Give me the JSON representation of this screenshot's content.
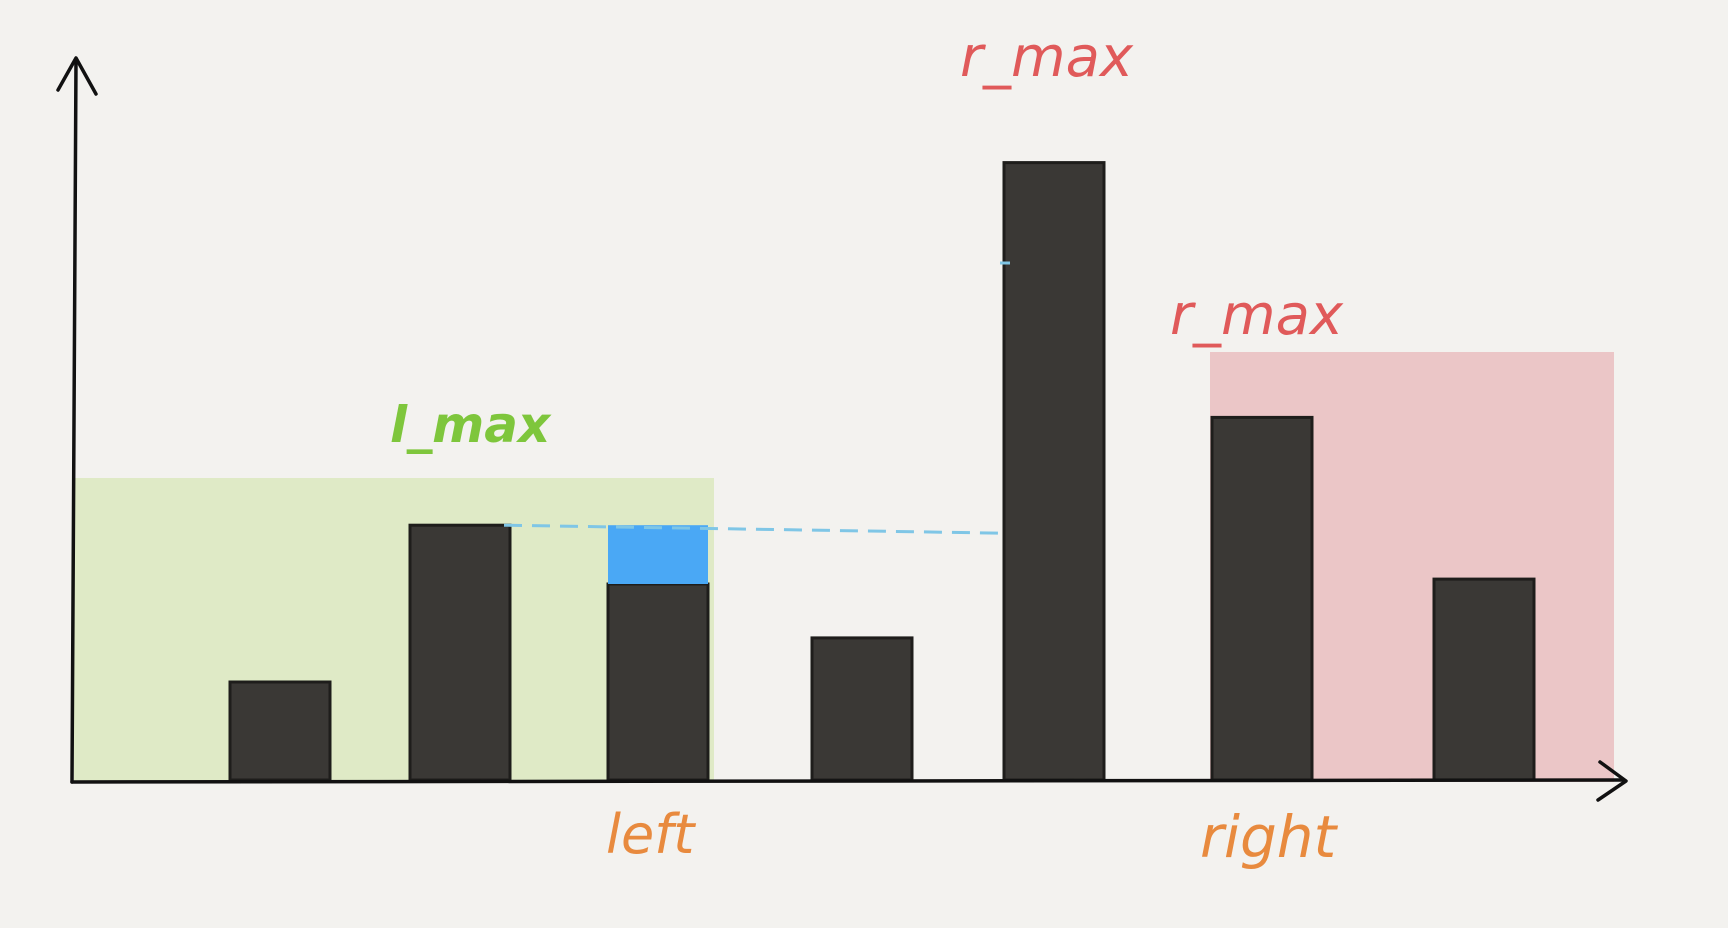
{
  "labels": {
    "l_max": "l_max",
    "r_max_top": "r_max",
    "r_max_right": "r_max",
    "left": "left",
    "right": "right"
  },
  "colors": {
    "background": "#f3f2ef",
    "bar": "#3a3835",
    "axis": "#111111",
    "l_max_region": "#dfeac6",
    "r_max_region": "#ebc6c7",
    "water": "#4aa8f5",
    "dashed_line": "#7fc6e6",
    "l_max_text": "#7ec63c",
    "r_max_text": "#e05a5a",
    "pointer_text": "#e88a3e"
  },
  "bars": {
    "count": 7,
    "heights": [
      1.0,
      2.6,
      2.0,
      1.45,
      6.3,
      3.7,
      2.05
    ],
    "highlighted_index": 2,
    "water_top": 2.6
  }
}
